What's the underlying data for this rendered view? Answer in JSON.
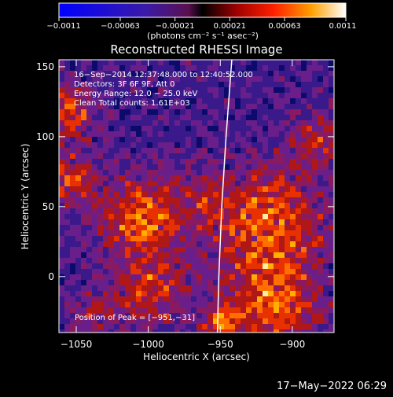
{
  "chart_data": {
    "type": "heatmap",
    "title": "Reconstructed RHESSI Image",
    "xlabel": "Heliocentric X (arcsec)",
    "ylabel": "Heliocentric Y (arcsec)",
    "xlim": [
      -1062,
      -871
    ],
    "ylim": [
      -40,
      155
    ],
    "xticks": [
      -1050,
      -1000,
      -950,
      -900
    ],
    "xtick_labels": [
      "−1050",
      "−1000",
      "−950",
      "−900"
    ],
    "yticks": [
      0,
      50,
      100,
      150
    ],
    "ytick_labels": [
      "0",
      "50",
      "100",
      "150"
    ],
    "colorbar": {
      "min": -0.0011,
      "max": 0.0011,
      "ticks": [
        -0.0011,
        -0.00063,
        -0.00021,
        0.00021,
        0.00063,
        0.0011
      ],
      "tick_labels": [
        "−0.0011",
        "−0.00063",
        "−0.00021",
        "0.00021",
        "0.00063",
        "0.0011"
      ],
      "unit_label": "(photons cm⁻² s⁻¹ asec⁻²)"
    },
    "annotations": [
      "16−Sep−2014 12:37:48.000 to 12:40:52.000",
      "Detectors: 3F 6F 9F, Att 0",
      "Energy Range: 12.0 − 25.0 keV",
      "Clean     Total counts: 1.61E+03"
    ],
    "peak_label": "Position of Peak = [−951,−31]",
    "peak": [
      -951,
      -31
    ],
    "limb_curve": [
      [
        -952,
        -40
      ],
      [
        -951,
        0
      ],
      [
        -949,
        50
      ],
      [
        -946,
        100
      ],
      [
        -942,
        155
      ]
    ]
  },
  "footer": {
    "timestamp": "17−May−2022 06:29"
  }
}
